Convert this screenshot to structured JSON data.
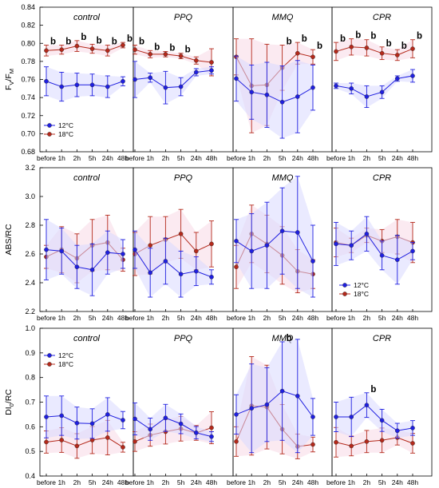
{
  "figure": {
    "colors": {
      "t12": "#1f1fe0",
      "t18": "#b4291b",
      "shade12": "#d8d8ff",
      "shade18": "#f8d8e6",
      "axis": "#000000"
    },
    "x_ticks": [
      "before",
      "1h",
      "2h",
      "5h",
      "24h",
      "48h"
    ],
    "legend_labels": [
      "12°C",
      "18°C"
    ]
  },
  "chart_data": [
    {
      "type": "line",
      "ylabel": "FV/FM",
      "ylabel_main": "F",
      "ylabel_sub1": "V",
      "ylabel_slash": "/F",
      "ylabel_sub2": "M",
      "ylim": [
        0.68,
        0.84
      ],
      "yticks": [
        "0.68",
        "0.70",
        "0.72",
        "0.74",
        "0.76",
        "0.78",
        "0.80",
        "0.82",
        "0.84"
      ],
      "grid": false,
      "legend_panel": "control",
      "legend_position": "lower-left",
      "panels": [
        {
          "title": "control",
          "series": [
            {
              "name": "12°C",
              "values": [
                0.758,
                0.752,
                0.754,
                0.754,
                0.752,
                0.758
              ],
              "errors": [
                0.016,
                0.016,
                0.013,
                0.012,
                0.012,
                0.005
              ]
            },
            {
              "name": "18°C",
              "values": [
                0.792,
                0.793,
                0.797,
                0.794,
                0.792,
                0.798
              ],
              "errors": [
                0.006,
                0.005,
                0.006,
                0.005,
                0.006,
                0.003
              ]
            }
          ],
          "annotations": [
            {
              "series": 1,
              "index": 0,
              "text": "b"
            },
            {
              "series": 1,
              "index": 1,
              "text": "b"
            },
            {
              "series": 1,
              "index": 2,
              "text": "b"
            },
            {
              "series": 1,
              "index": 3,
              "text": "b"
            },
            {
              "series": 1,
              "index": 4,
              "text": "b"
            },
            {
              "series": 1,
              "index": 5,
              "text": "b"
            }
          ]
        },
        {
          "title": "PPQ",
          "series": [
            {
              "name": "12°C",
              "values": [
                0.76,
                0.762,
                0.751,
                0.752,
                0.768,
                0.77
              ],
              "errors": [
                0.02,
                0.005,
                0.018,
                0.01,
                0.004,
                0.004
              ]
            },
            {
              "name": "18°C",
              "values": [
                0.793,
                0.788,
                0.788,
                0.786,
                0.781,
                0.779
              ],
              "errors": [
                0.005,
                0.004,
                0.003,
                0.003,
                0.004,
                0.015
              ]
            }
          ],
          "annotations": [
            {
              "series": 1,
              "index": 0,
              "text": "b"
            },
            {
              "series": 1,
              "index": 1,
              "text": "b"
            },
            {
              "series": 1,
              "index": 2,
              "text": "b"
            },
            {
              "series": 1,
              "index": 3,
              "text": "b"
            }
          ]
        },
        {
          "title": "MMQ",
          "series": [
            {
              "name": "12°C",
              "values": [
                0.761,
                0.746,
                0.743,
                0.735,
                0.741,
                0.751
              ],
              "errors": [
                0.025,
                0.03,
                0.036,
                0.04,
                0.04,
                0.025
              ]
            },
            {
              "name": "18°C",
              "values": [
                0.785,
                0.753,
                0.754,
                0.773,
                0.789,
                0.785
              ],
              "errors": [
                0.02,
                0.052,
                0.045,
                0.025,
                0.012,
                0.008
              ]
            }
          ],
          "annotations": [
            {
              "series": 1,
              "index": 3,
              "text": "b"
            },
            {
              "series": 1,
              "index": 4,
              "text": "b"
            },
            {
              "series": 1,
              "index": 5,
              "text": "b"
            }
          ]
        },
        {
          "title": "CPR",
          "series": [
            {
              "name": "12°C",
              "values": [
                0.753,
                0.75,
                0.741,
                0.746,
                0.761,
                0.764
              ],
              "errors": [
                0.003,
                0.006,
                0.012,
                0.007,
                0.003,
                0.007
              ]
            },
            {
              "name": "18°C",
              "values": [
                0.791,
                0.796,
                0.795,
                0.789,
                0.787,
                0.794
              ],
              "errors": [
                0.01,
                0.009,
                0.009,
                0.007,
                0.006,
                0.01
              ]
            }
          ],
          "annotations": [
            {
              "series": 1,
              "index": 0,
              "text": "b"
            },
            {
              "series": 1,
              "index": 1,
              "text": "b"
            },
            {
              "series": 1,
              "index": 2,
              "text": "b"
            },
            {
              "series": 1,
              "index": 3,
              "text": "b"
            },
            {
              "series": 1,
              "index": 4,
              "text": "b"
            },
            {
              "series": 1,
              "index": 5,
              "text": "b"
            }
          ]
        }
      ]
    },
    {
      "type": "line",
      "ylabel": "ABS/RC",
      "ylabel_main": "ABS/RC",
      "ylim": [
        2.2,
        3.2
      ],
      "yticks": [
        "2.2",
        "2.4",
        "2.6",
        "2.8",
        "3.0",
        "3.2"
      ],
      "grid": false,
      "legend_panel": "CPR",
      "legend_position": "lower-right",
      "panels": [
        {
          "title": "control",
          "series": [
            {
              "name": "12°C",
              "values": [
                2.63,
                2.62,
                2.51,
                2.49,
                2.61,
                2.6
              ],
              "errors": [
                0.21,
                0.16,
                0.15,
                0.18,
                0.15,
                0.1
              ]
            },
            {
              "name": "18°C",
              "values": [
                2.58,
                2.63,
                2.57,
                2.66,
                2.68,
                2.56
              ],
              "errors": [
                0.08,
                0.16,
                0.17,
                0.18,
                0.19,
                0.08
              ]
            }
          ],
          "annotations": []
        },
        {
          "title": "PPQ",
          "series": [
            {
              "name": "12°C",
              "values": [
                2.63,
                2.47,
                2.55,
                2.46,
                2.48,
                2.44
              ],
              "errors": [
                0.13,
                0.17,
                0.16,
                0.16,
                0.1,
                0.05
              ]
            },
            {
              "name": "18°C",
              "values": [
                2.6,
                2.66,
                2.7,
                2.74,
                2.62,
                2.67
              ],
              "errors": [
                0.15,
                0.2,
                0.16,
                0.17,
                0.13,
                0.16
              ]
            }
          ],
          "annotations": []
        },
        {
          "title": "MMQ",
          "series": [
            {
              "name": "12°C",
              "values": [
                2.69,
                2.62,
                2.66,
                2.76,
                2.75,
                2.55
              ],
              "errors": [
                0.15,
                0.26,
                0.3,
                0.3,
                0.39,
                0.25
              ]
            },
            {
              "name": "18°C",
              "values": [
                2.51,
                2.74,
                2.67,
                2.59,
                2.48,
                2.46
              ],
              "errors": [
                0.15,
                0.2,
                0.2,
                0.2,
                0.15,
                0.1
              ]
            }
          ],
          "annotations": []
        },
        {
          "title": "CPR",
          "series": [
            {
              "name": "12°C",
              "values": [
                2.67,
                2.66,
                2.74,
                2.59,
                2.56,
                2.62
              ],
              "errors": [
                0.15,
                0.1,
                0.12,
                0.1,
                0.17,
                0.06
              ]
            },
            {
              "name": "18°C",
              "values": [
                2.68,
                2.66,
                2.73,
                2.69,
                2.72,
                2.68
              ],
              "errors": [
                0.1,
                0.05,
                0.05,
                0.08,
                0.12,
                0.14
              ]
            }
          ],
          "annotations": []
        }
      ]
    },
    {
      "type": "line",
      "ylabel": "DI0/RC",
      "ylabel_main": "DI",
      "ylabel_sub1": "0",
      "ylabel_slash": "/RC",
      "ylim": [
        0.4,
        1.0
      ],
      "yticks": [
        "0.4",
        "0.5",
        "0.6",
        "0.7",
        "0.8",
        "0.9",
        "1.0"
      ],
      "grid": false,
      "legend_panel": "control",
      "legend_position": "upper-left",
      "panels": [
        {
          "title": "control",
          "series": [
            {
              "name": "12°C",
              "values": [
                0.64,
                0.645,
                0.615,
                0.613,
                0.65,
                0.627
              ],
              "errors": [
                0.085,
                0.08,
                0.065,
                0.06,
                0.068,
                0.035
              ]
            },
            {
              "name": "18°C",
              "values": [
                0.538,
                0.546,
                0.522,
                0.546,
                0.556,
                0.517
              ],
              "errors": [
                0.045,
                0.05,
                0.05,
                0.055,
                0.07,
                0.02
              ]
            }
          ],
          "annotations": []
        },
        {
          "title": "PPQ",
          "series": [
            {
              "name": "12°C",
              "values": [
                0.632,
                0.59,
                0.636,
                0.612,
                0.576,
                0.56
              ],
              "errors": [
                0.065,
                0.045,
                0.055,
                0.04,
                0.025,
                0.02
              ]
            },
            {
              "name": "18°C",
              "values": [
                0.54,
                0.566,
                0.58,
                0.592,
                0.575,
                0.596
              ],
              "errors": [
                0.04,
                0.045,
                0.05,
                0.05,
                0.03,
                0.065
              ]
            }
          ],
          "annotations": []
        },
        {
          "title": "MMQ",
          "series": [
            {
              "name": "12°C",
              "values": [
                0.65,
                0.675,
                0.69,
                0.745,
                0.725,
                0.64
              ],
              "errors": [
                0.08,
                0.18,
                0.15,
                0.2,
                0.23,
                0.075
              ]
            },
            {
              "name": "18°C",
              "values": [
                0.54,
                0.685,
                0.68,
                0.59,
                0.52,
                0.528
              ],
              "errors": [
                0.06,
                0.2,
                0.17,
                0.1,
                0.05,
                0.03
              ]
            }
          ],
          "annotations": [
            {
              "series": 0,
              "index": 3,
              "text": "b"
            }
          ]
        },
        {
          "title": "CPR",
          "series": [
            {
              "name": "12°C",
              "values": [
                0.64,
                0.64,
                0.688,
                0.626,
                0.584,
                0.595
              ],
              "errors": [
                0.06,
                0.08,
                0.05,
                0.045,
                0.03,
                0.03
              ]
            },
            {
              "name": "18°C",
              "values": [
                0.537,
                0.522,
                0.54,
                0.545,
                0.556,
                0.533
              ],
              "errors": [
                0.06,
                0.04,
                0.045,
                0.05,
                0.03,
                0.04
              ]
            }
          ],
          "annotations": [
            {
              "series": 0,
              "index": 2,
              "text": "b"
            }
          ]
        }
      ]
    }
  ]
}
